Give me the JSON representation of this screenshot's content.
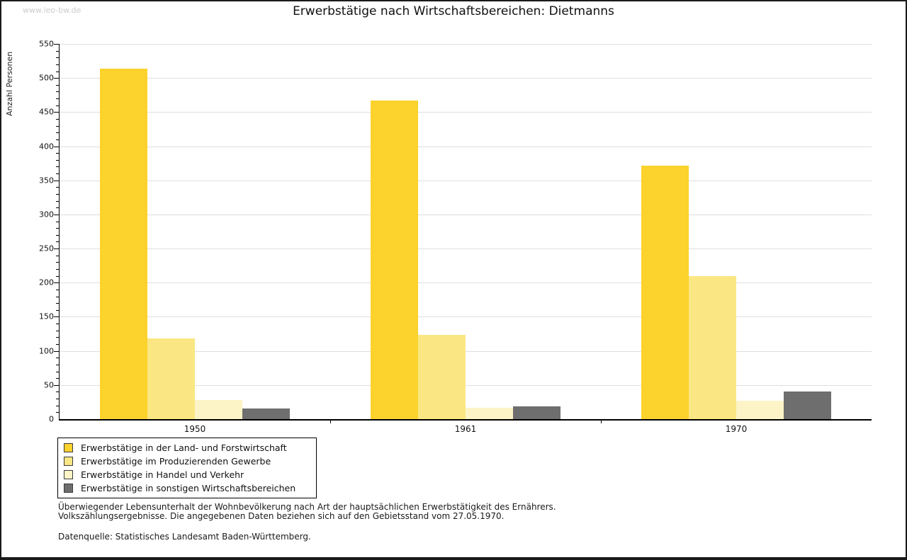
{
  "page": {
    "watermark": "www.leo-bw.de",
    "background": "#ffffff",
    "frame_border_color": "#1a1a1a"
  },
  "chart_data": {
    "type": "bar",
    "title": "Erwerbstätige nach Wirtschaftsbereichen: Dietmanns",
    "xlabel": "",
    "ylabel": "Anzahl Personen",
    "categories": [
      "1950",
      "1961",
      "1970"
    ],
    "series": [
      {
        "name": "Erwerbstätige in der Land- und Forstwirtschaft",
        "color": "#FCD22C",
        "values": [
          514,
          467,
          372
        ]
      },
      {
        "name": "Erwerbstätige im Produzierenden Gewerbe",
        "color": "#FAE783",
        "values": [
          118,
          123,
          210
        ]
      },
      {
        "name": "Erwerbstätige in Handel und Verkehr",
        "color": "#FCF4C6",
        "values": [
          28,
          17,
          27
        ]
      },
      {
        "name": "Erwerbstätige in sonstigen Wirtschaftsbereichen",
        "color": "#6E6E6E",
        "values": [
          16,
          19,
          40
        ]
      }
    ],
    "ylim": [
      0,
      550
    ],
    "y_major_step": 50,
    "y_minor_step": 10,
    "grid": "horizontal-major",
    "legend_position": "bottom-left"
  },
  "footer": {
    "note_line1": "Überwiegender Lebensunterhalt der Wohnbevölkerung nach Art der hauptsächlichen Erwerbstätigkeit des Ernährers.",
    "note_line2": "Volkszählungsergebnisse. Die angegebenen Daten beziehen sich auf den Gebietsstand vom 27.05.1970.",
    "source": "Datenquelle: Statistisches Landesamt Baden-Württemberg."
  },
  "colors": {
    "gridline": "#DFDFDF",
    "axis": "#000000",
    "watermark_text": "#CCCCCC",
    "text": "#111111"
  }
}
